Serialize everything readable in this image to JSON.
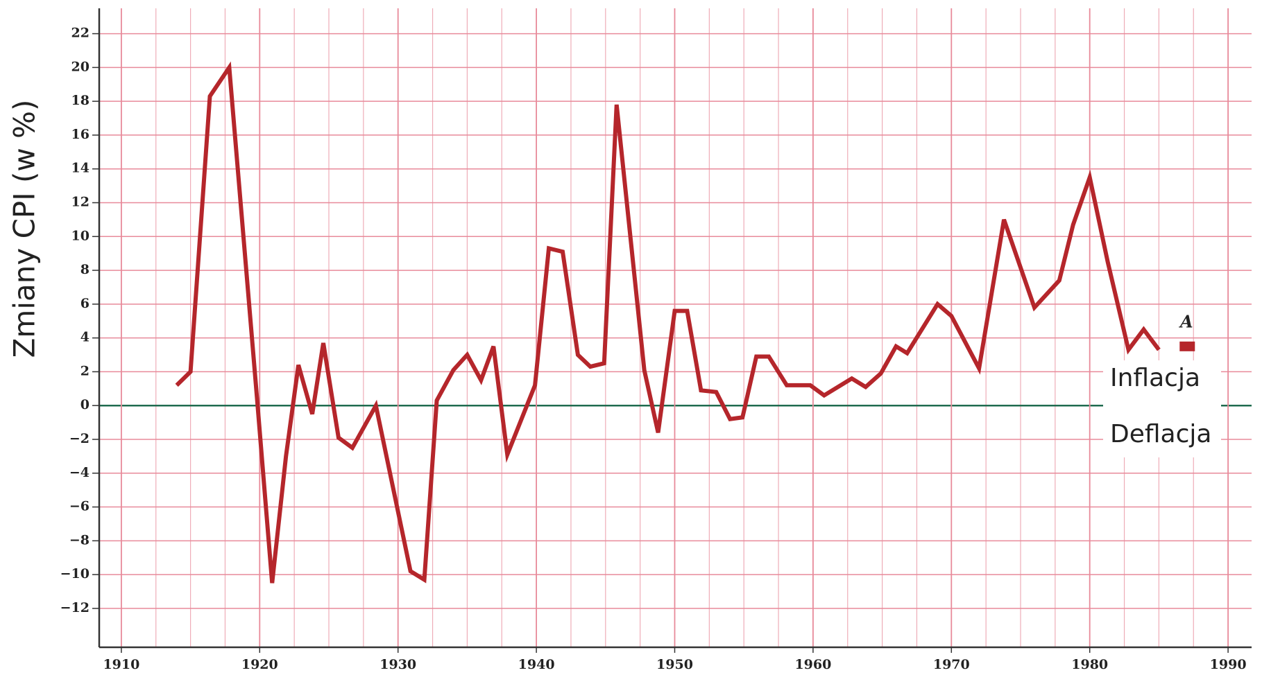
{
  "chart_data": {
    "type": "line",
    "y_label": "Zmiany CPI (w %)",
    "x": [
      1914,
      1915,
      1916.4,
      1917.8,
      1919.8,
      1920.9,
      1921.9,
      1922.8,
      1923.8,
      1924.6,
      1925.7,
      1926.7,
      1928.4,
      1930.9,
      1931.9,
      1932.8,
      1934,
      1935,
      1936,
      1936.9,
      1937.9,
      1939.9,
      1940.9,
      1941.9,
      1943,
      1943.9,
      1944.9,
      1945.8,
      1947.8,
      1948.8,
      1950,
      1950.9,
      1951.9,
      1953,
      1954,
      1954.9,
      1955.9,
      1956.8,
      1958.1,
      1959.8,
      1960.8,
      1962.8,
      1963.8,
      1964.9,
      1966,
      1966.8,
      1969,
      1970,
      1972,
      1973.8,
      1976,
      1977.8,
      1978.8,
      1980,
      1981.3,
      1982.8,
      1983.9,
      1985
    ],
    "series": [
      {
        "name": "CPI",
        "color": "#b5262b",
        "values": [
          1.2,
          2.0,
          18.3,
          20.0,
          0.5,
          -10.5,
          -3.0,
          2.4,
          -0.5,
          3.7,
          -1.9,
          -2.5,
          0.0,
          -9.8,
          -10.3,
          0.3,
          2.1,
          3.0,
          1.5,
          3.5,
          -2.9,
          1.2,
          9.3,
          9.1,
          3.0,
          2.3,
          2.5,
          17.8,
          2.1,
          -1.6,
          5.6,
          5.6,
          0.9,
          0.8,
          -0.8,
          -0.7,
          2.9,
          2.9,
          1.2,
          1.2,
          0.6,
          1.6,
          1.1,
          1.9,
          3.5,
          3.1,
          6.0,
          5.3,
          2.2,
          11.0,
          5.8,
          7.4,
          10.7,
          13.5,
          8.5,
          3.3,
          4.5,
          3.3
        ]
      }
    ],
    "marker": {
      "label": "A",
      "x": 1987,
      "value": 3.5
    },
    "annotations": [
      "Inflacja",
      "Deflacja"
    ],
    "xlim": [
      1908.4,
      1991.7
    ],
    "xticks": [
      1910,
      1920,
      1930,
      1940,
      1950,
      1960,
      1970,
      1980,
      1990
    ],
    "ylim": [
      -14.3,
      23.5
    ],
    "yticks": [
      {
        "value": -12,
        "label": "−12"
      },
      {
        "value": -10,
        "label": "−10"
      },
      {
        "value": -8,
        "label": "−8"
      },
      {
        "value": -6,
        "label": "−6"
      },
      {
        "value": -4,
        "label": "−4"
      },
      {
        "value": -2,
        "label": "−2"
      },
      0,
      2,
      4,
      6,
      8,
      10,
      12,
      14,
      16,
      18,
      20,
      22
    ],
    "grid": true,
    "grid_color": "#e88a9a",
    "zero_line_color": "#1f6b4f"
  }
}
